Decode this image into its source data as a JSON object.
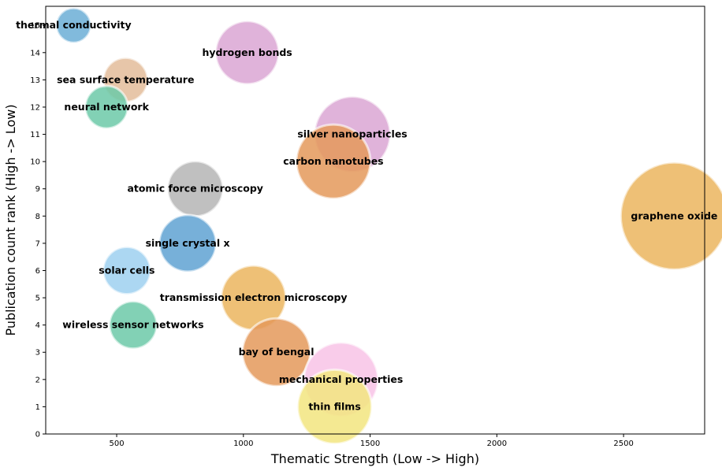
{
  "chart_data": {
    "type": "scatter",
    "subtype": "bubble",
    "title": "",
    "xlabel": "Thematic Strength (Low -> High)",
    "ylabel": "Publication count rank (High -> Low)",
    "xlim": [
      220,
      2820
    ],
    "ylim": [
      0,
      15.7
    ],
    "xticks": [
      500,
      1000,
      1500,
      2000,
      2500
    ],
    "yticks": [
      0,
      1,
      2,
      3,
      4,
      5,
      6,
      7,
      8,
      9,
      10,
      11,
      12,
      13,
      14,
      15
    ],
    "grid": false,
    "points": [
      {
        "label": "thermal conductivity",
        "x": 330,
        "y": 15,
        "size": 22,
        "color": "#6baed6"
      },
      {
        "label": "hydrogen bonds",
        "x": 1015,
        "y": 14,
        "size": 40,
        "color": "#dba6d3"
      },
      {
        "label": "sea surface temperature",
        "x": 535,
        "y": 13,
        "size": 28,
        "color": "#e3bc9a"
      },
      {
        "label": "neural network",
        "x": 460,
        "y": 12,
        "size": 27,
        "color": "#6cc9a8"
      },
      {
        "label": "silver nanoparticles",
        "x": 1430,
        "y": 11,
        "size": 48,
        "color": "#dba6d3"
      },
      {
        "label": "carbon nanotubes",
        "x": 1355,
        "y": 10,
        "size": 47,
        "color": "#e4995a"
      },
      {
        "label": "atomic force microscopy",
        "x": 810,
        "y": 9,
        "size": 35,
        "color": "#b5b5b5"
      },
      {
        "label": "graphene oxide",
        "x": 2700,
        "y": 8,
        "size": 68,
        "color": "#ebb55e"
      },
      {
        "label": "single crystal x",
        "x": 780,
        "y": 7,
        "size": 36,
        "color": "#5fa2d2"
      },
      {
        "label": "solar cells",
        "x": 540,
        "y": 6,
        "size": 30,
        "color": "#9ed0f0"
      },
      {
        "label": "transmission electron microscopy",
        "x": 1040,
        "y": 5,
        "size": 41,
        "color": "#ebb55e"
      },
      {
        "label": "wireless sensor networks",
        "x": 565,
        "y": 4,
        "size": 30,
        "color": "#6cc9a8"
      },
      {
        "label": "bay of bengal",
        "x": 1130,
        "y": 3,
        "size": 43,
        "color": "#e4995a"
      },
      {
        "label": "mechanical properties",
        "x": 1385,
        "y": 2,
        "size": 47,
        "color": "#f8c3e6"
      },
      {
        "label": "thin films",
        "x": 1360,
        "y": 1,
        "size": 47,
        "color": "#f2e57f"
      }
    ]
  }
}
